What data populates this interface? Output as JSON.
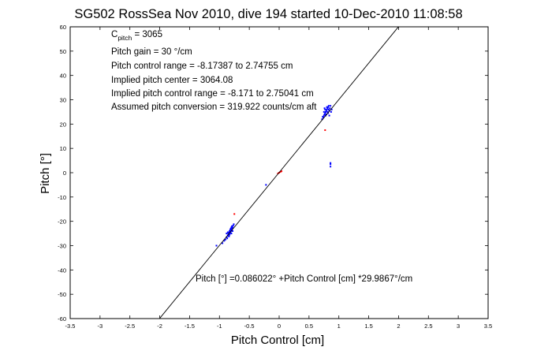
{
  "chart_data": {
    "type": "scatter",
    "title": "SG502 RossSea Nov 2010, dive 194 started 10-Dec-2010 11:08:58",
    "xlabel": "Pitch Control [cm]",
    "ylabel": "Pitch [°]",
    "xlim": [
      -3.5,
      3.5
    ],
    "ylim": [
      -60,
      60
    ],
    "xticks": [
      -3.5,
      -3,
      -2.5,
      -2,
      -1.5,
      -1,
      -0.5,
      0,
      0.5,
      1,
      1.5,
      2,
      2.5,
      3,
      3.5
    ],
    "xtick_labels": [
      "-3.5",
      "-3",
      "-2.5",
      "-2",
      "-1.5",
      "-1",
      "-0.5",
      "0",
      "0.5",
      "1",
      "1.5",
      "2",
      "2.5",
      "3",
      "3.5"
    ],
    "yticks": [
      -60,
      -50,
      -40,
      -30,
      -20,
      -10,
      0,
      10,
      20,
      30,
      40,
      50,
      60
    ],
    "ytick_labels": [
      "-60",
      "-50",
      "-40",
      "-30",
      "-20",
      "-10",
      "0",
      "10",
      "20",
      "30",
      "40",
      "50",
      "60"
    ],
    "grid": false,
    "fit_line": {
      "intercept": 0.086022,
      "slope": 29.9867,
      "x_range": [
        -2.0,
        2.0
      ]
    },
    "series": [
      {
        "color": "#0000ff",
        "points": [
          [
            -0.9,
            -27.5
          ],
          [
            -0.88,
            -26.5
          ],
          [
            -0.86,
            -25.8
          ],
          [
            -0.85,
            -25.2
          ],
          [
            -0.84,
            -24.6
          ],
          [
            -0.83,
            -24.0
          ],
          [
            -0.82,
            -23.5
          ],
          [
            -0.81,
            -23.0
          ],
          [
            -0.8,
            -22.5
          ],
          [
            -0.79,
            -22.0
          ],
          [
            -0.87,
            -27.0
          ],
          [
            -0.85,
            -26.0
          ],
          [
            -0.83,
            -25.5
          ],
          [
            -0.82,
            -24.8
          ],
          [
            -0.81,
            -24.2
          ],
          [
            -0.8,
            -23.8
          ],
          [
            -0.79,
            -23.2
          ],
          [
            -0.78,
            -22.6
          ],
          [
            -0.77,
            -21.8
          ],
          [
            -0.76,
            -21.2
          ],
          [
            -0.84,
            -26.2
          ],
          [
            -0.86,
            -24.5
          ],
          [
            -0.8,
            -25.0
          ],
          [
            -0.78,
            -24.0
          ],
          [
            -0.88,
            -25.0
          ],
          [
            -0.92,
            -28.0
          ],
          [
            -0.95,
            -29.0
          ],
          [
            -1.05,
            -30.0
          ],
          [
            0.72,
            22.0
          ],
          [
            0.74,
            22.8
          ],
          [
            0.75,
            23.5
          ],
          [
            0.76,
            24.0
          ],
          [
            0.77,
            24.5
          ],
          [
            0.78,
            25.0
          ],
          [
            0.79,
            25.5
          ],
          [
            0.8,
            26.0
          ],
          [
            0.81,
            26.5
          ],
          [
            0.82,
            27.0
          ],
          [
            0.83,
            27.5
          ],
          [
            0.75,
            25.0
          ],
          [
            0.77,
            26.0
          ],
          [
            0.79,
            24.0
          ],
          [
            0.81,
            25.0
          ],
          [
            0.83,
            26.0
          ],
          [
            0.84,
            25.5
          ],
          [
            0.85,
            26.5
          ],
          [
            0.86,
            27.5
          ],
          [
            0.73,
            23.0
          ],
          [
            0.76,
            26.5
          ],
          [
            0.78,
            23.5
          ],
          [
            0.8,
            27.0
          ],
          [
            0.82,
            24.5
          ],
          [
            0.84,
            23.5
          ],
          [
            0.87,
            25.0
          ],
          [
            0.88,
            26.0
          ],
          [
            0.86,
            4.0
          ],
          [
            0.86,
            3.5
          ],
          [
            0.86,
            2.5
          ],
          [
            -0.22,
            -5.0
          ]
        ]
      },
      {
        "color": "#ff0000",
        "points": [
          [
            0.0,
            0.0
          ],
          [
            0.02,
            0.3
          ],
          [
            -0.02,
            -0.3
          ],
          [
            0.04,
            0.6
          ],
          [
            0.77,
            17.5
          ],
          [
            -0.75,
            -17.0
          ]
        ]
      }
    ]
  },
  "annotations": {
    "c_pitch_main": "C",
    "c_pitch_sub": "pitch",
    "c_pitch_rest": " = 3065",
    "lines": [
      "Pitch gain = 30 °/cm",
      "Pitch control range = -8.17387 to 2.74755 cm",
      "Implied pitch center = 3064.08",
      "Implied pitch control range = -8.171 to 2.75041 cm",
      "Assumed pitch conversion = 319.922 counts/cm aft"
    ],
    "fit_equation": "Pitch [°] =0.086022° +Pitch Control [cm] *29.9867°/cm"
  }
}
